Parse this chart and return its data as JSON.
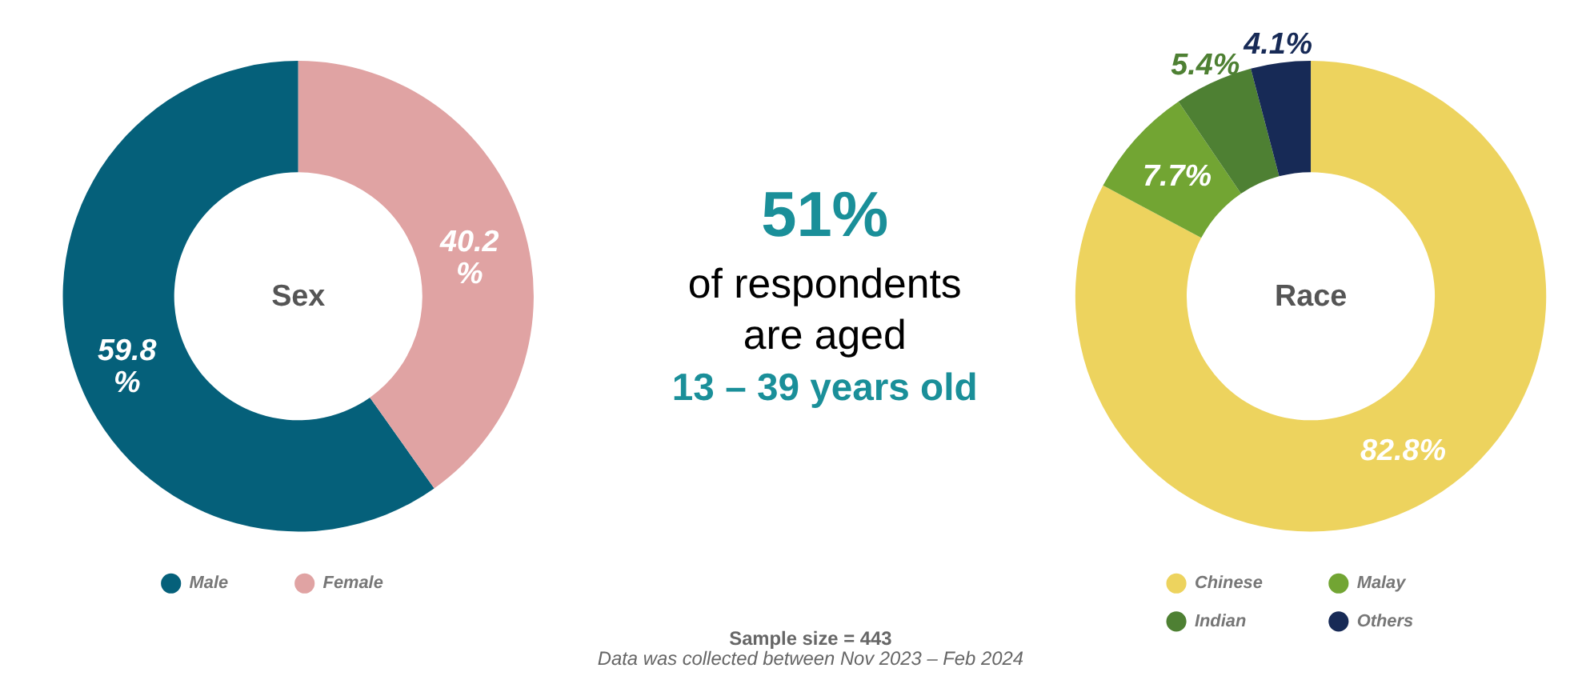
{
  "chart_data": [
    {
      "type": "donut",
      "title": "Sex",
      "categories": [
        "Male",
        "Female"
      ],
      "values": [
        59.8,
        40.2
      ],
      "colors": [
        "#05607a",
        "#e0a3a3"
      ],
      "value_labels": [
        "59.8\n%",
        "40.2\n%"
      ],
      "legend": "bottom"
    },
    {
      "type": "other",
      "title": "51%",
      "subtitle": "of respondents\nare aged",
      "annotations": [
        "13 – 39 years old",
        "Sample size = 443",
        "Data was collected between Nov 2023 – Feb 2024"
      ]
    },
    {
      "type": "donut",
      "title": "Race",
      "categories": [
        "Chinese",
        "Malay",
        "Indian",
        "Others"
      ],
      "values": [
        82.8,
        7.7,
        5.4,
        4.1
      ],
      "colors": [
        "#edd35e",
        "#72a533",
        "#4e8033",
        "#172a56"
      ],
      "value_labels": [
        "82.8%",
        "7.7%",
        "5.4%",
        "4.1%"
      ],
      "legend": "bottom"
    }
  ]
}
